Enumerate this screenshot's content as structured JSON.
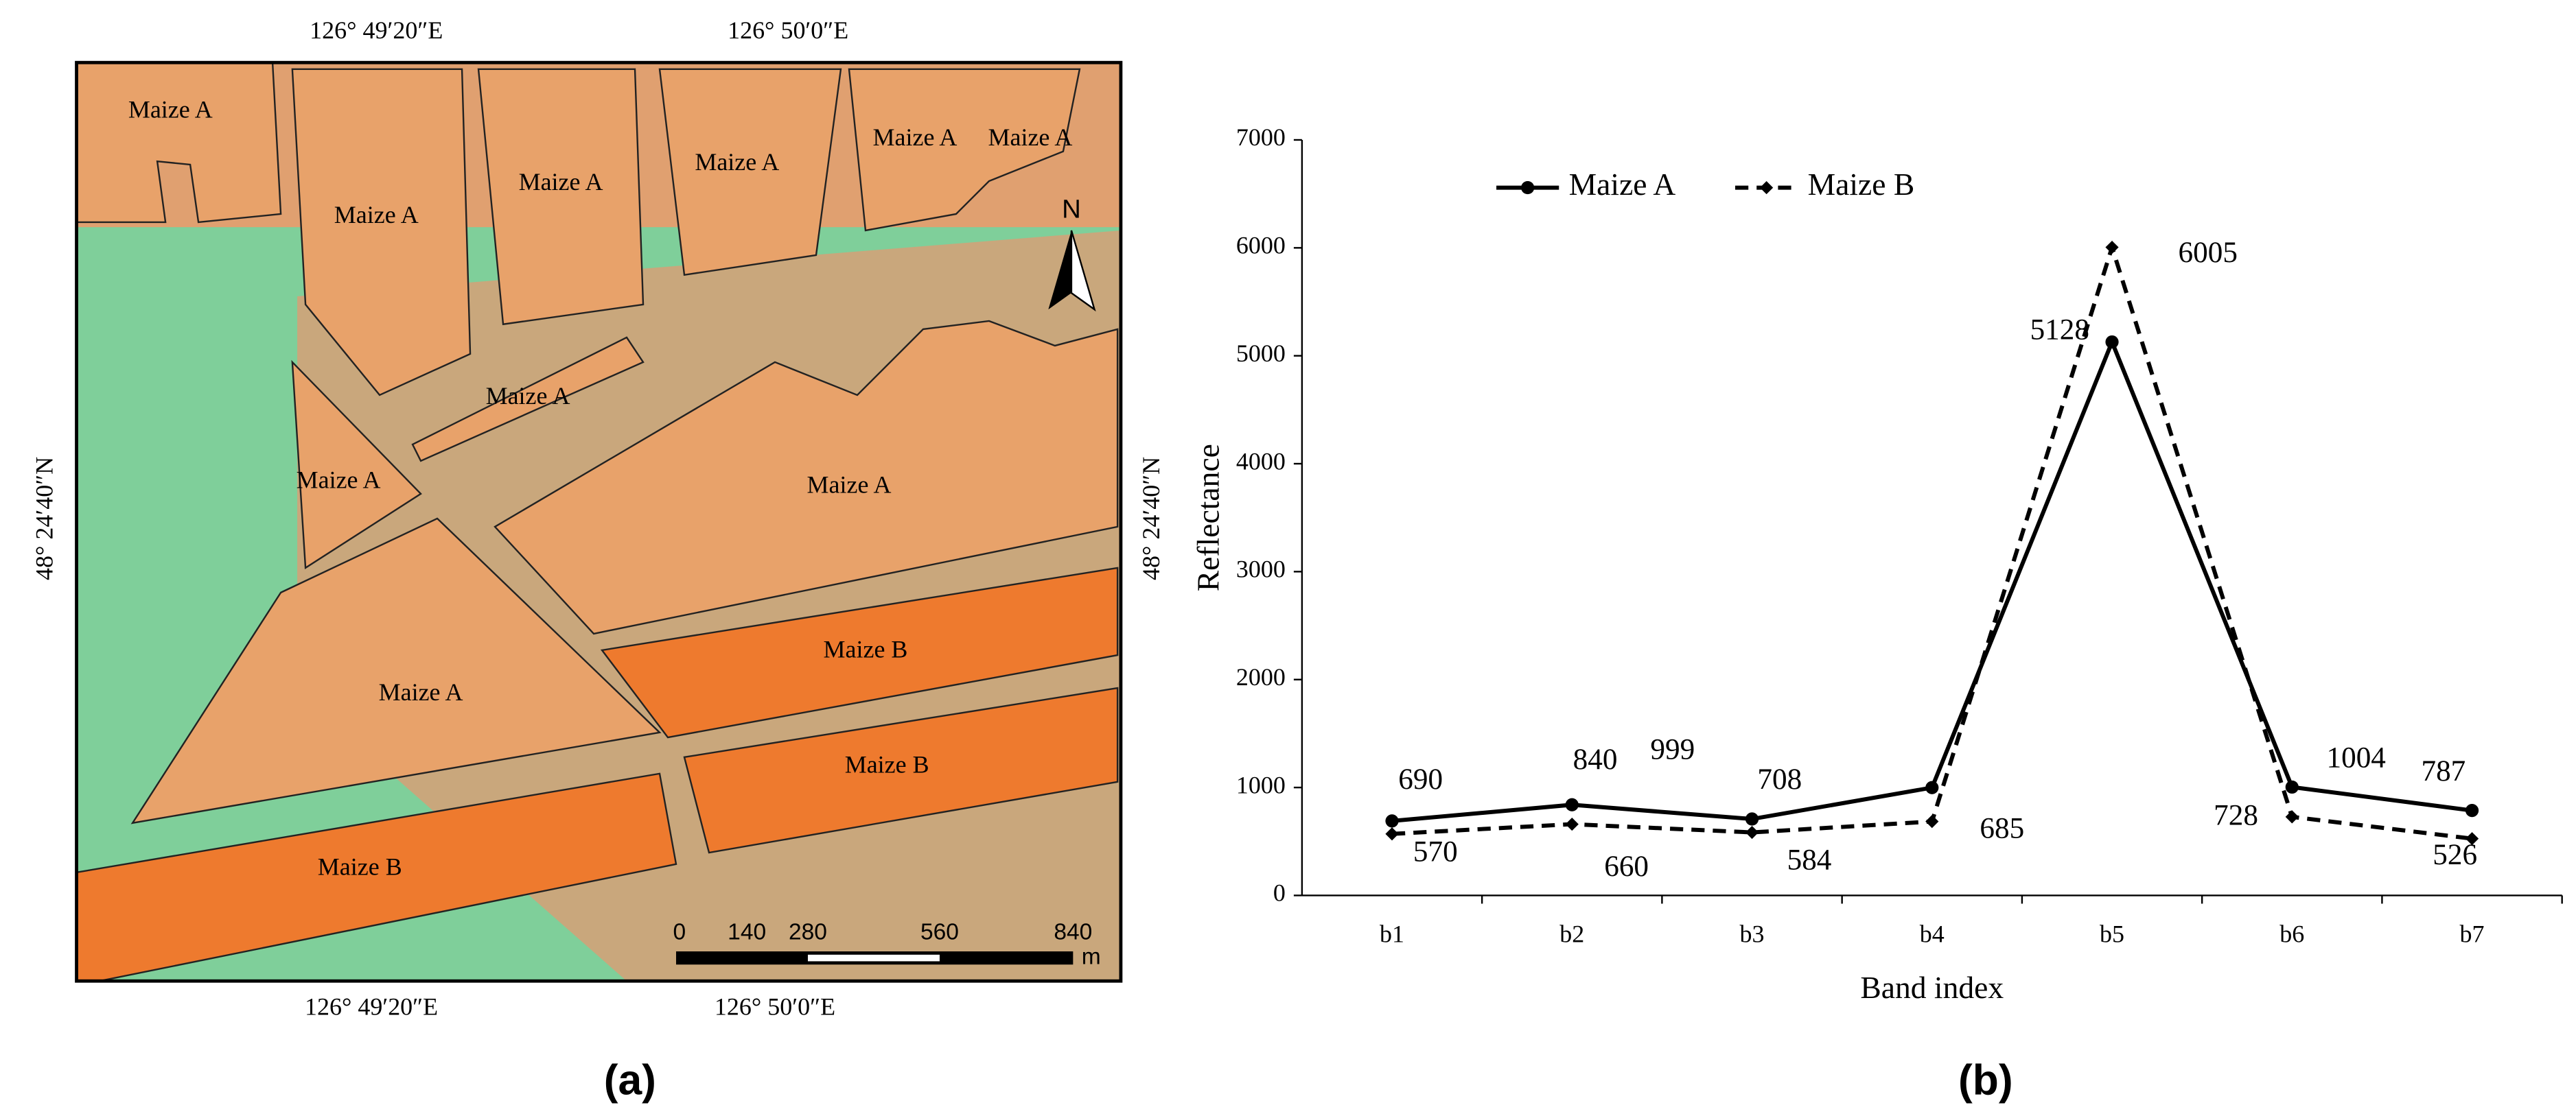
{
  "map": {
    "fields": [
      "Maize A",
      "Maize A",
      "Maize A",
      "Maize A",
      "Maize A",
      "Maize A",
      "Maize A",
      "Maize A",
      "Maize A",
      "Maize A",
      "Maize B",
      "Maize B",
      "Maize B"
    ],
    "top_labels": [
      "126° 49′20″E",
      "126° 50′0″E"
    ],
    "bottom_labels": [
      "126° 49′20″E",
      "126° 50′0″E"
    ],
    "left_label": "48° 24′40″N",
    "right_label": "48° 24′40″N",
    "north": "N",
    "scale_labels": [
      "0",
      "140",
      "280",
      "560",
      "840"
    ],
    "scale_unit": "m"
  },
  "chart_data": {
    "type": "line",
    "categories": [
      "b1",
      "b2",
      "b3",
      "b4",
      "b5",
      "b6",
      "b7"
    ],
    "series": [
      {
        "name": "Maize A",
        "color": "#000000",
        "dash": false,
        "values": [
          690,
          840,
          708,
          999,
          5128,
          1004,
          787
        ]
      },
      {
        "name": "Maize B",
        "color": "#000000",
        "dash": true,
        "values": [
          570,
          660,
          584,
          685,
          6005,
          728,
          526
        ]
      }
    ],
    "ylim": [
      0,
      7000
    ],
    "yticks": [
      0,
      1000,
      2000,
      3000,
      4000,
      5000,
      6000,
      7000
    ],
    "xlabel": "Band index",
    "ylabel": "Reflectance"
  },
  "captions": [
    "(a)",
    "(b)"
  ]
}
